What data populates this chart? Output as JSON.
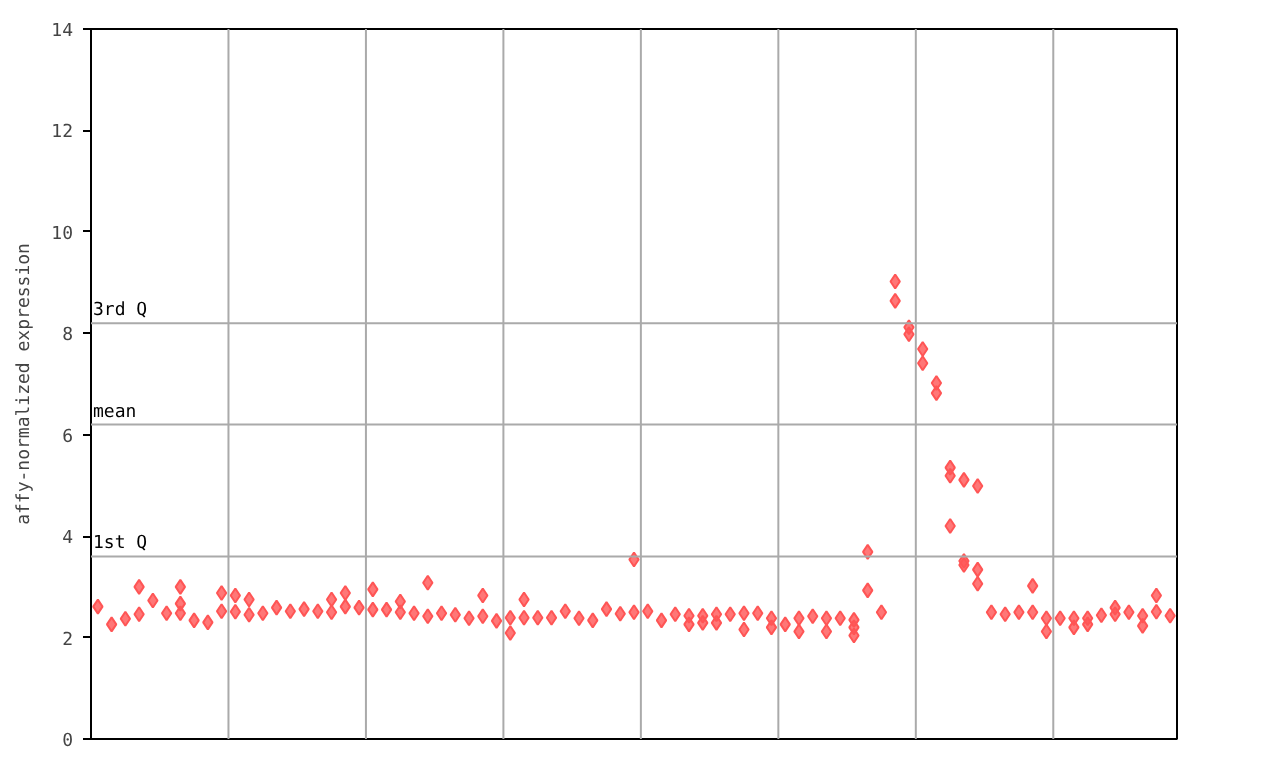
{
  "chart_data": {
    "type": "scatter",
    "ylabel": "affy-normalized expression",
    "marker": "diamond",
    "grid": "x",
    "tick_labels": "y",
    "categories": [
      null,
      null,
      null,
      null,
      null,
      null,
      null,
      null,
      null,
      null,
      null,
      null,
      null,
      null,
      null,
      null,
      null,
      null,
      null,
      null,
      null,
      null,
      null,
      null,
      null,
      null,
      null,
      null,
      null,
      null,
      null,
      null,
      null,
      null,
      null,
      null,
      null,
      null,
      null,
      null,
      null,
      null,
      null,
      null,
      null,
      null,
      null,
      null,
      null,
      null,
      null,
      null,
      null,
      null,
      null,
      null,
      null,
      null,
      null,
      null,
      null,
      null,
      null,
      null,
      null,
      null,
      null,
      null,
      null,
      null,
      null,
      null,
      null,
      null,
      null,
      null,
      null,
      null,
      null
    ],
    "ylim": [
      0,
      14
    ],
    "yticks": [
      0,
      2,
      4,
      6,
      8,
      10,
      12,
      14
    ],
    "ref_lines": [
      {
        "axis": "y",
        "value": 8.2,
        "label": "3rd Q",
        "color": "#aaaaaa"
      },
      {
        "axis": "y",
        "value": 6.2,
        "label": "mean",
        "color": "#aaaaaa"
      },
      {
        "axis": "y",
        "value": 3.6,
        "label": "1st Q",
        "color": "#aaaaaa"
      }
    ],
    "series": [
      {
        "color": "#ff5555",
        "values": [
          2.61,
          2.26,
          2.37,
          3.0,
          2.73,
          2.48,
          3.0,
          2.34,
          2.3,
          2.88,
          2.83,
          2.75,
          2.48,
          2.59,
          2.52,
          2.56,
          2.52,
          2.75,
          2.88,
          2.59,
          2.95,
          2.55,
          2.71,
          2.48,
          3.08,
          2.48,
          2.45,
          2.38,
          2.83,
          2.33,
          2.39,
          2.75,
          2.39,
          2.39,
          2.52,
          2.38,
          2.34,
          2.56,
          2.47,
          3.54,
          2.52,
          2.34,
          2.46,
          2.43,
          2.43,
          2.46,
          2.46,
          2.48,
          2.48,
          2.38,
          2.26,
          2.38,
          2.42,
          2.38,
          2.38,
          2.35,
          3.69,
          2.5,
          9.02,
          8.12,
          7.69,
          7.02,
          5.35,
          5.11,
          4.99,
          2.5,
          2.46,
          2.5,
          3.02,
          2.38,
          2.38,
          2.38,
          2.38,
          2.44,
          2.59,
          2.5,
          2.43,
          2.83,
          2.43
        ]
      },
      {
        "color": "#ff5555",
        "values": [
          null,
          null,
          null,
          2.46,
          null,
          null,
          2.67,
          null,
          null,
          2.52,
          2.51,
          2.45,
          null,
          null,
          null,
          null,
          null,
          2.5,
          2.61,
          null,
          2.55,
          null,
          2.5,
          null,
          2.42,
          null,
          null,
          null,
          2.42,
          null,
          2.09,
          2.39,
          null,
          null,
          null,
          null,
          null,
          null,
          null,
          2.5,
          null,
          null,
          null,
          2.26,
          2.29,
          2.29,
          null,
          2.16,
          null,
          2.2,
          null,
          2.12,
          null,
          2.12,
          null,
          2.2,
          2.93,
          null,
          8.64,
          7.98,
          7.41,
          6.82,
          5.19,
          3.51,
          3.34,
          null,
          null,
          null,
          2.5,
          2.12,
          null,
          2.2,
          2.26,
          null,
          2.46,
          null,
          2.23,
          2.51,
          null
        ]
      },
      {
        "color": "#ff5555",
        "values": [
          null,
          null,
          null,
          null,
          null,
          null,
          2.48,
          null,
          null,
          null,
          null,
          null,
          null,
          null,
          null,
          null,
          null,
          null,
          null,
          null,
          null,
          null,
          null,
          null,
          null,
          null,
          null,
          null,
          null,
          null,
          null,
          null,
          null,
          null,
          null,
          null,
          null,
          null,
          null,
          null,
          null,
          null,
          null,
          null,
          null,
          null,
          null,
          null,
          null,
          null,
          null,
          null,
          null,
          null,
          null,
          2.04,
          null,
          null,
          null,
          null,
          null,
          null,
          4.2,
          3.43,
          3.06,
          null,
          null,
          null,
          null,
          null,
          null,
          null,
          null,
          null,
          null,
          null,
          null,
          null,
          null
        ]
      }
    ]
  }
}
